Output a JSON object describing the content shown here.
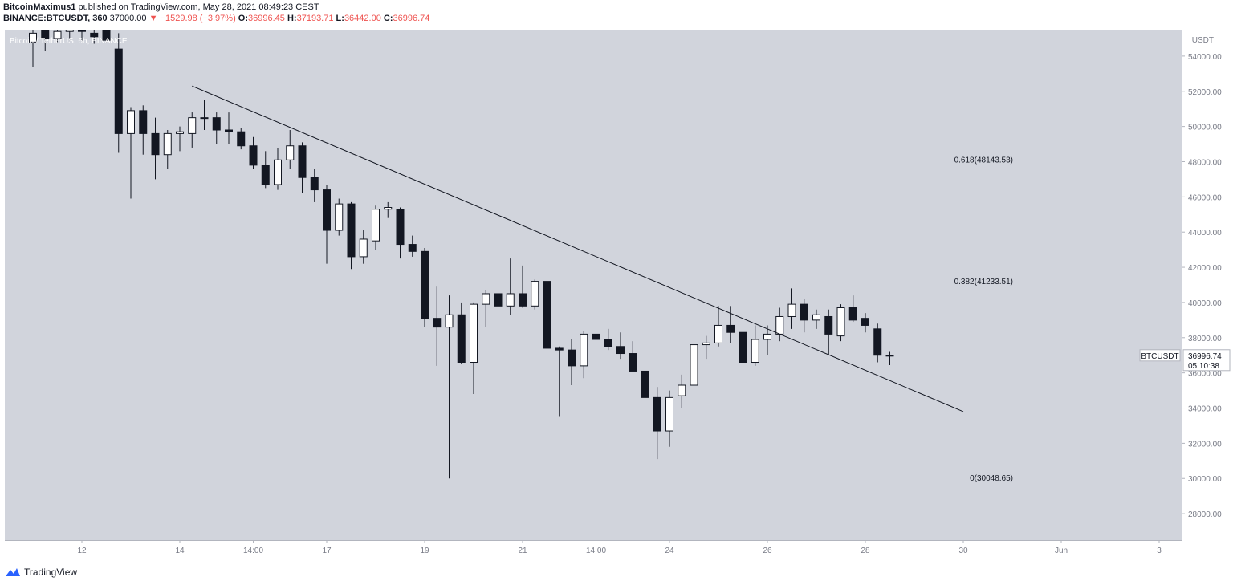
{
  "header": {
    "author": "BitcoinMaximus1",
    "published": "published on TradingView.com, May 28, 2021 08:49:23 CEST",
    "symbol": "BINANCE:BTCUSDT, 360",
    "last": "37000.00",
    "change": "−1529.98 (−3.97%)",
    "o_label": "O:",
    "o": "36996.45",
    "h_label": "H:",
    "h": "37193.71",
    "l_label": "L:",
    "l": "36442.00",
    "c_label": "C:",
    "c": "36996.74"
  },
  "footer": {
    "brand": "TradingView",
    "logo_icon": "tradingview-logo-icon"
  },
  "colors": {
    "background": "#d1d4dc",
    "up_body": "#ffffff",
    "down_body": "#131722",
    "wick": "#131722",
    "accent_red": "#ef5350"
  },
  "chart_data": {
    "type": "candlestick",
    "title": "Bitcoin / TetherUS, 6h, BINANCE",
    "y_unit": "USDT",
    "ylim": [
      26500,
      55500
    ],
    "y_ticks": [
      54000,
      52000,
      50000,
      48000,
      46000,
      44000,
      42000,
      40000,
      38000,
      36000,
      34000,
      32000,
      30000,
      28000
    ],
    "x_ticks": [
      {
        "label": "12",
        "bar": 4
      },
      {
        "label": "14",
        "bar": 12
      },
      {
        "label": "14:00",
        "bar": 18
      },
      {
        "label": "17",
        "bar": 24
      },
      {
        "label": "19",
        "bar": 32
      },
      {
        "label": "21",
        "bar": 40
      },
      {
        "label": "14:00",
        "bar": 46
      },
      {
        "label": "24",
        "bar": 52
      },
      {
        "label": "26",
        "bar": 60
      },
      {
        "label": "28",
        "bar": 68
      },
      {
        "label": "30",
        "bar": 76
      },
      {
        "label": "Jun",
        "bar": 84
      },
      {
        "label": "3",
        "bar": 92
      }
    ],
    "candles": [
      {
        "o": 54800,
        "h": 55500,
        "l": 53400,
        "c": 55300
      },
      {
        "o": 55500,
        "h": 56000,
        "l": 54300,
        "c": 55000
      },
      {
        "o": 55000,
        "h": 55800,
        "l": 54800,
        "c": 55400
      },
      {
        "o": 55400,
        "h": 55900,
        "l": 54900,
        "c": 55500
      },
      {
        "o": 55500,
        "h": 55900,
        "l": 54800,
        "c": 55400
      },
      {
        "o": 55300,
        "h": 55700,
        "l": 54700,
        "c": 55100
      },
      {
        "o": 55500,
        "h": 55800,
        "l": 54800,
        "c": 54900
      },
      {
        "o": 54400,
        "h": 55300,
        "l": 48500,
        "c": 49600
      },
      {
        "o": 49600,
        "h": 51100,
        "l": 45900,
        "c": 50900
      },
      {
        "o": 50900,
        "h": 51200,
        "l": 48400,
        "c": 49600
      },
      {
        "o": 49600,
        "h": 50500,
        "l": 47000,
        "c": 48400
      },
      {
        "o": 48400,
        "h": 49800,
        "l": 47600,
        "c": 49600
      },
      {
        "o": 49600,
        "h": 50000,
        "l": 48600,
        "c": 49700
      },
      {
        "o": 49600,
        "h": 50800,
        "l": 48800,
        "c": 50500
      },
      {
        "o": 50500,
        "h": 51500,
        "l": 49800,
        "c": 50500
      },
      {
        "o": 50500,
        "h": 50800,
        "l": 49000,
        "c": 49800
      },
      {
        "o": 49800,
        "h": 50800,
        "l": 49000,
        "c": 49700
      },
      {
        "o": 49700,
        "h": 49900,
        "l": 48700,
        "c": 48900
      },
      {
        "o": 48900,
        "h": 49400,
        "l": 47600,
        "c": 47800
      },
      {
        "o": 47800,
        "h": 48600,
        "l": 46500,
        "c": 46700
      },
      {
        "o": 46700,
        "h": 48800,
        "l": 46400,
        "c": 48100
      },
      {
        "o": 48100,
        "h": 49800,
        "l": 47600,
        "c": 48900
      },
      {
        "o": 48900,
        "h": 49100,
        "l": 46200,
        "c": 47100
      },
      {
        "o": 47100,
        "h": 47600,
        "l": 45700,
        "c": 46400
      },
      {
        "o": 46400,
        "h": 46700,
        "l": 42200,
        "c": 44100
      },
      {
        "o": 44100,
        "h": 45900,
        "l": 43800,
        "c": 45600
      },
      {
        "o": 45600,
        "h": 45700,
        "l": 41900,
        "c": 42600
      },
      {
        "o": 42600,
        "h": 44100,
        "l": 42200,
        "c": 43600
      },
      {
        "o": 43500,
        "h": 45500,
        "l": 43000,
        "c": 45300
      },
      {
        "o": 45300,
        "h": 45700,
        "l": 44800,
        "c": 45400
      },
      {
        "o": 45300,
        "h": 45400,
        "l": 42500,
        "c": 43300
      },
      {
        "o": 43300,
        "h": 43800,
        "l": 42600,
        "c": 42900
      },
      {
        "o": 42900,
        "h": 43100,
        "l": 38600,
        "c": 39100
      },
      {
        "o": 39100,
        "h": 40900,
        "l": 36400,
        "c": 38600
      },
      {
        "o": 38600,
        "h": 40400,
        "l": 30000,
        "c": 39300
      },
      {
        "o": 39300,
        "h": 40000,
        "l": 36500,
        "c": 36600
      },
      {
        "o": 36600,
        "h": 40000,
        "l": 34800,
        "c": 39900
      },
      {
        "o": 39900,
        "h": 40700,
        "l": 38600,
        "c": 40500
      },
      {
        "o": 40500,
        "h": 41200,
        "l": 39400,
        "c": 39800
      },
      {
        "o": 39800,
        "h": 42500,
        "l": 39300,
        "c": 40500
      },
      {
        "o": 40500,
        "h": 42100,
        "l": 39700,
        "c": 39800
      },
      {
        "o": 39800,
        "h": 41300,
        "l": 39600,
        "c": 41200
      },
      {
        "o": 41200,
        "h": 41700,
        "l": 36300,
        "c": 37400
      },
      {
        "o": 37400,
        "h": 37500,
        "l": 33500,
        "c": 37300
      },
      {
        "o": 37300,
        "h": 37900,
        "l": 35300,
        "c": 36400
      },
      {
        "o": 36400,
        "h": 38400,
        "l": 35700,
        "c": 38200
      },
      {
        "o": 38200,
        "h": 38800,
        "l": 37200,
        "c": 37900
      },
      {
        "o": 37900,
        "h": 38500,
        "l": 37300,
        "c": 37500
      },
      {
        "o": 37500,
        "h": 38300,
        "l": 36800,
        "c": 37100
      },
      {
        "o": 37100,
        "h": 37800,
        "l": 36300,
        "c": 36100
      },
      {
        "o": 36100,
        "h": 36700,
        "l": 33300,
        "c": 34600
      },
      {
        "o": 34600,
        "h": 35200,
        "l": 31100,
        "c": 32700
      },
      {
        "o": 32700,
        "h": 35000,
        "l": 31800,
        "c": 34600
      },
      {
        "o": 34700,
        "h": 35900,
        "l": 34000,
        "c": 35300
      },
      {
        "o": 35300,
        "h": 38000,
        "l": 35100,
        "c": 37600
      },
      {
        "o": 37600,
        "h": 38100,
        "l": 36800,
        "c": 37700
      },
      {
        "o": 37700,
        "h": 39800,
        "l": 37500,
        "c": 38700
      },
      {
        "o": 38700,
        "h": 39800,
        "l": 37700,
        "c": 38300
      },
      {
        "o": 38300,
        "h": 39200,
        "l": 36400,
        "c": 36600
      },
      {
        "o": 36600,
        "h": 38700,
        "l": 36400,
        "c": 37900
      },
      {
        "o": 37900,
        "h": 38700,
        "l": 37000,
        "c": 38200
      },
      {
        "o": 38200,
        "h": 39700,
        "l": 37800,
        "c": 39200
      },
      {
        "o": 39200,
        "h": 40800,
        "l": 38500,
        "c": 39900
      },
      {
        "o": 39900,
        "h": 40200,
        "l": 38300,
        "c": 39000
      },
      {
        "o": 39000,
        "h": 39600,
        "l": 38500,
        "c": 39300
      },
      {
        "o": 39200,
        "h": 39600,
        "l": 37000,
        "c": 38200
      },
      {
        "o": 38100,
        "h": 39900,
        "l": 37800,
        "c": 39700
      },
      {
        "o": 39700,
        "h": 40400,
        "l": 38900,
        "c": 39000
      },
      {
        "o": 39100,
        "h": 39400,
        "l": 38300,
        "c": 38700
      },
      {
        "o": 38500,
        "h": 38800,
        "l": 36600,
        "c": 37000
      },
      {
        "o": 36996.45,
        "h": 37193.71,
        "l": 36442.0,
        "c": 36996.74
      }
    ],
    "trendline": [
      {
        "bar": 13,
        "price": 52300
      },
      {
        "bar": 76,
        "price": 33800
      }
    ],
    "fib_levels": [
      {
        "label": "0.618(48143.53)",
        "price": 48143.53
      },
      {
        "label": "0.382(41233.51)",
        "price": 41233.51
      },
      {
        "label": "0(30048.65)",
        "price": 30048.65
      }
    ],
    "last_price": {
      "symbol": "BTCUSDT",
      "price": "36996.74",
      "countdown": "05:10:38",
      "value": 36996.74
    }
  }
}
